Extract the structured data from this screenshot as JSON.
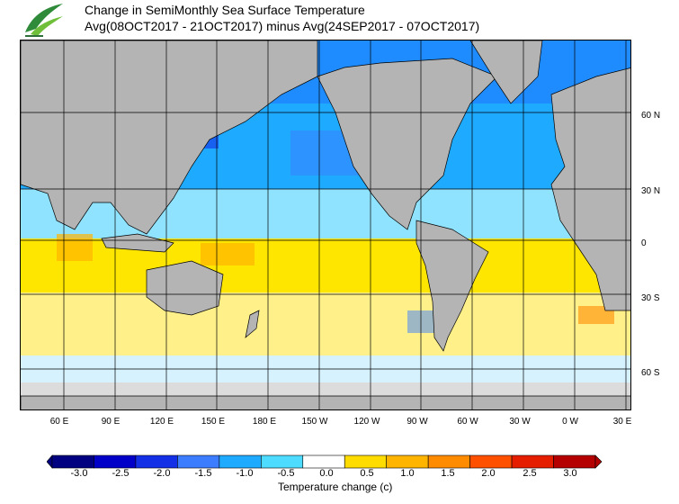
{
  "title_line1": "Change in SemiMonthly Sea Surface Temperature",
  "title_line2": "Avg(08OCT2017 - 21OCT2017) minus Avg(24SEP2017 - 07OCT2017)",
  "logo_icon": "leaf-swoosh-logo-icon",
  "lat_labels": [
    "60 N",
    "30 N",
    "0",
    "30 S",
    "60 S"
  ],
  "lon_labels": [
    "60 E",
    "90 E",
    "120 E",
    "150 E",
    "180 E",
    "150 W",
    "120 W",
    "90 W",
    "60 W",
    "30 W",
    "0 W",
    "30 E"
  ],
  "colorbar": {
    "ticks": [
      "-3.0",
      "-2.5",
      "-2.0",
      "-1.5",
      "-1.0",
      "-0.5",
      "0.0",
      "0.5",
      "1.0",
      "1.5",
      "2.0",
      "2.5",
      "3.0"
    ],
    "colors": [
      "#000080",
      "#0000c8",
      "#1430e6",
      "#3c7dff",
      "#1eaaff",
      "#4ddcff",
      "#ffffff",
      "#ffdc00",
      "#ffb400",
      "#ff8c00",
      "#ff5000",
      "#e61e00",
      "#b40000"
    ],
    "title": "Temperature change  (c)"
  },
  "colors": {
    "land": "#b4b4b4",
    "sea_ice": "#dcdcdc",
    "grid": "#000000"
  }
}
